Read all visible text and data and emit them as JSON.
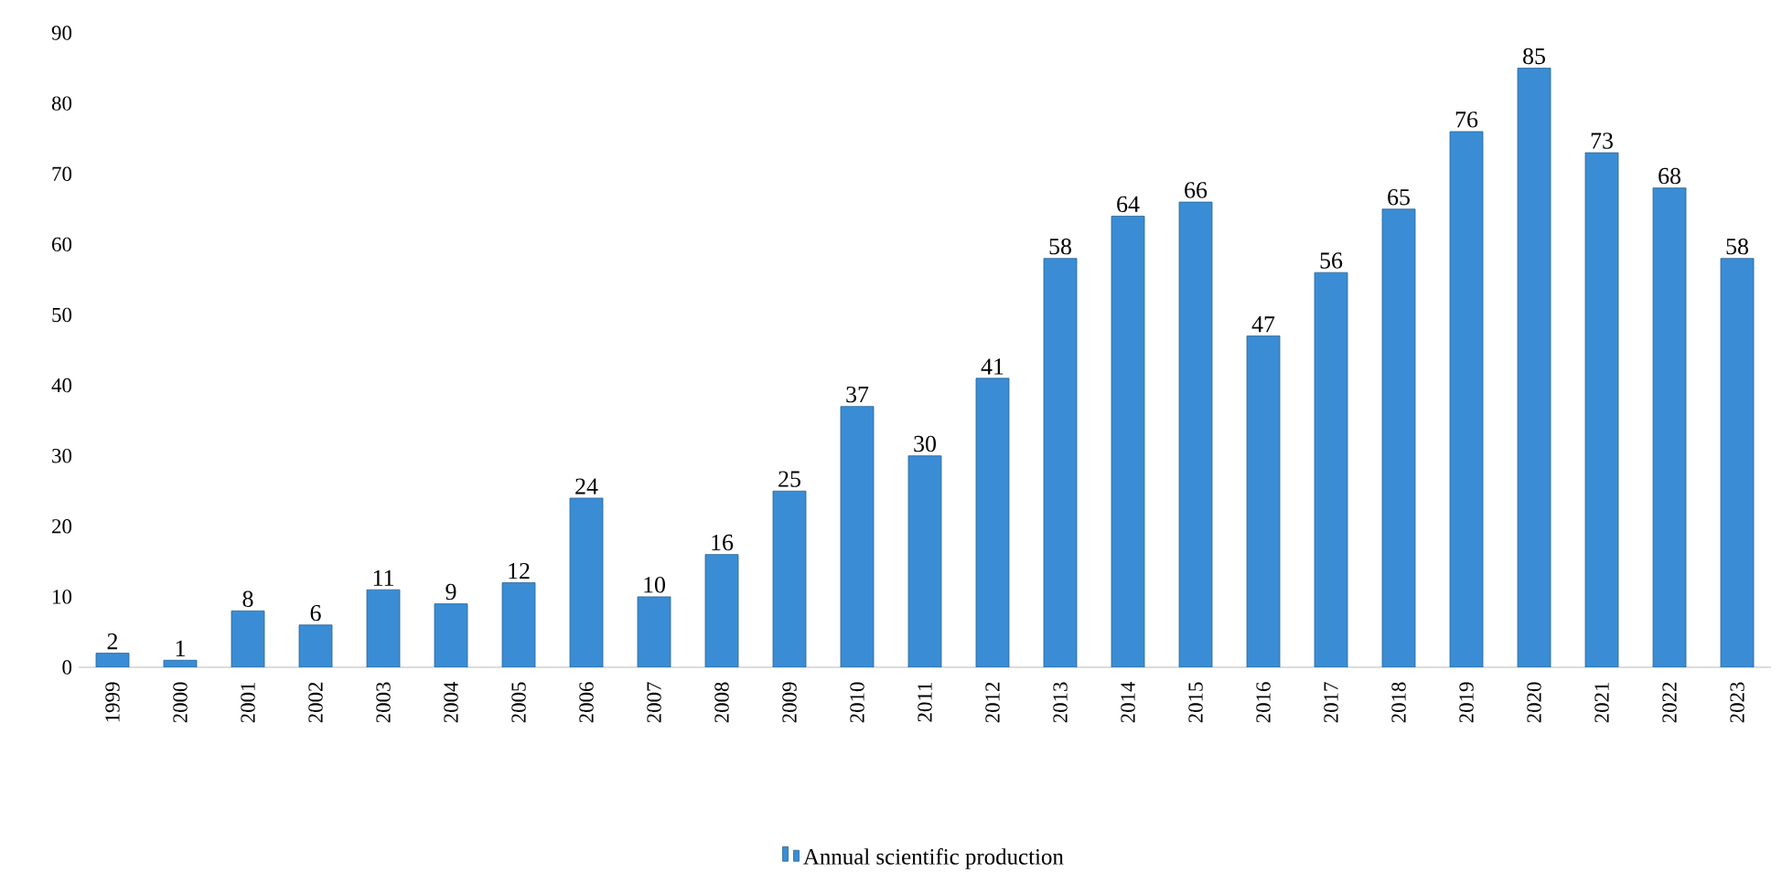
{
  "chart_data": {
    "type": "bar",
    "categories": [
      "1999",
      "2000",
      "2001",
      "2002",
      "2003",
      "2004",
      "2005",
      "2006",
      "2007",
      "2008",
      "2009",
      "2010",
      "2011",
      "2012",
      "2013",
      "2014",
      "2015",
      "2016",
      "2017",
      "2018",
      "2019",
      "2020",
      "2021",
      "2022",
      "2023"
    ],
    "series": [
      {
        "name": "Annual scientific production",
        "color": "#3a8dd4",
        "values": [
          2,
          1,
          8,
          6,
          11,
          9,
          12,
          24,
          10,
          16,
          25,
          37,
          30,
          41,
          58,
          64,
          66,
          47,
          56,
          65,
          76,
          85,
          73,
          68,
          58
        ]
      }
    ],
    "ylim": [
      0,
      90
    ],
    "yticks": [
      0,
      10,
      20,
      30,
      40,
      50,
      60,
      70,
      80,
      90
    ],
    "data_labels": true,
    "legend": "bottom"
  }
}
